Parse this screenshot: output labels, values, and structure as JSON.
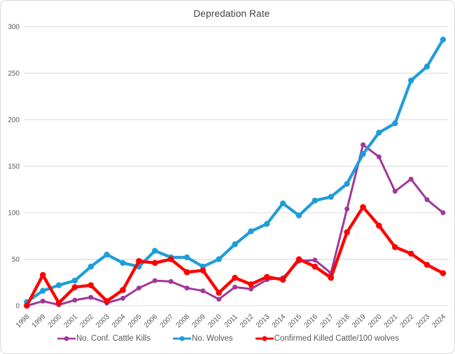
{
  "title": "Depredation Rate",
  "chart_data": {
    "type": "line",
    "title": "Depredation Rate",
    "xlabel": "",
    "ylabel": "",
    "ylim": [
      0,
      300
    ],
    "ytick_step": 50,
    "grid": true,
    "legend_position": "bottom",
    "categories": [
      "1998",
      "1999",
      "2000",
      "2001",
      "2002",
      "2003",
      "2004",
      "2005",
      "2006",
      "2007",
      "2008",
      "2009",
      "2010",
      "2011",
      "2012",
      "2013",
      "2014",
      "2015",
      "2016",
      "2017",
      "2018",
      "2019",
      "2020",
      "2021",
      "2022",
      "2023",
      "2024"
    ],
    "series": [
      {
        "name": "No. Conf. Cattle Kills",
        "color": "#A03799",
        "line_width": 3,
        "marker_radius": 3.5,
        "values": [
          0,
          5,
          1,
          6,
          9,
          3,
          8,
          19,
          27,
          26,
          19,
          16,
          7,
          20,
          18,
          28,
          30,
          48,
          49,
          35,
          104,
          173,
          160,
          123,
          136,
          114,
          100
        ]
      },
      {
        "name": "No. Wolves",
        "color": "#1F9DD9",
        "line_width": 4.2,
        "marker_radius": 4.2,
        "values": [
          4,
          16,
          22,
          27,
          42,
          55,
          46,
          42,
          59,
          52,
          52,
          42,
          50,
          66,
          80,
          88,
          110,
          97,
          113,
          117,
          131,
          163,
          186,
          196,
          242,
          257,
          286
        ]
      },
      {
        "name": "Confirmed Killed Cattle/100 wolves",
        "color": "#FF0000",
        "line_width": 4.4,
        "marker_radius": 4.3,
        "values": [
          0,
          33,
          3,
          20,
          22,
          5,
          17,
          48,
          46,
          50,
          36,
          38,
          14,
          30,
          23,
          31,
          28,
          50,
          42,
          30,
          79,
          106,
          86,
          63,
          56,
          44,
          35
        ]
      }
    ]
  },
  "colors": {
    "background": "#FFFFFF",
    "border": "#D9D9D9",
    "gridline": "#D9D9D9",
    "axis_text": "#595959",
    "title_text": "#404040"
  }
}
